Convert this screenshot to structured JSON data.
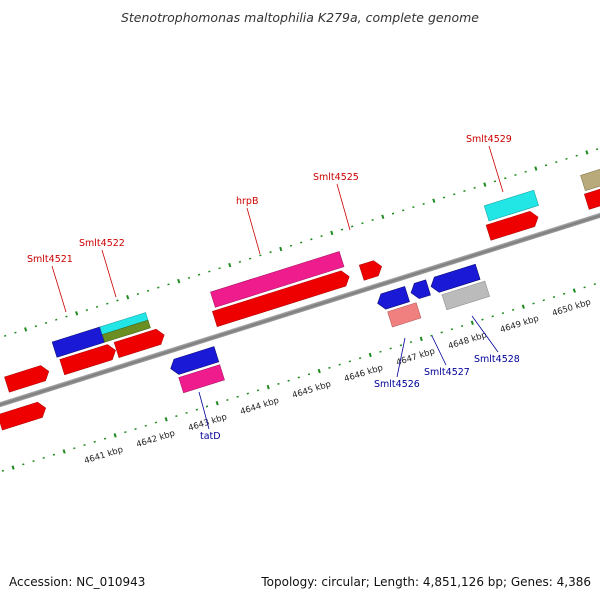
{
  "title": "Stenotrophomonas maltophilia K279a, complete genome",
  "footer": {
    "accession": "Accession: NC_010943",
    "topology": "Topology: circular; Length: 4,851,126 bp; Genes: 4,386"
  },
  "scale_labels": [
    "4641 kbp",
    "4642 kbp",
    "4643 kbp",
    "4644 kbp",
    "4645 kbp",
    "4646 kbp",
    "4647 kbp",
    "4648 kbp",
    "4649 kbp",
    "4650 kbp"
  ],
  "gene_labels_top": [
    "Smlt4521",
    "Smlt4522",
    "hrpB",
    "Smlt4525",
    "Smlt4529"
  ],
  "gene_labels_bottom": [
    "tatD",
    "Smlt4526",
    "Smlt4527",
    "Smlt4528"
  ],
  "colors": {
    "red": "#ee0000",
    "blue": "#1a1ad6",
    "pink": "#ee1c8c",
    "cyan": "#22e6e6",
    "olive": "#6b8e23",
    "khaki": "#b8aa7a",
    "salmon": "#f08080",
    "gray": "#bbbbbb",
    "axis": "#8a8a8a",
    "tick": "#1f8a1f",
    "label_top": "#cc0000",
    "label_bottom": "#000099"
  }
}
